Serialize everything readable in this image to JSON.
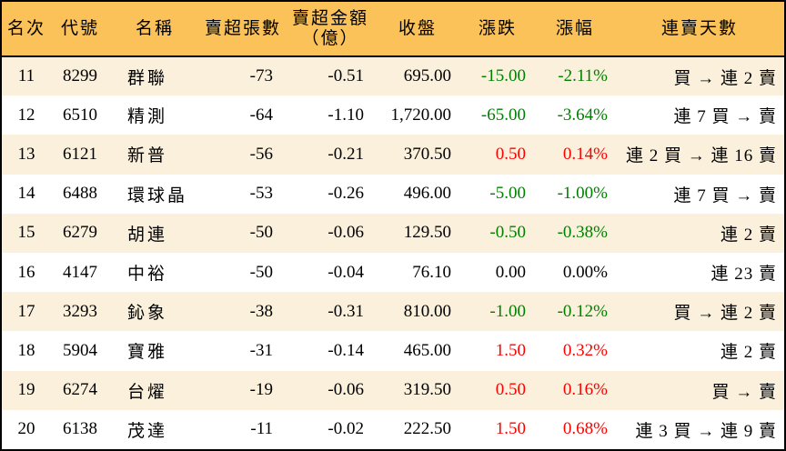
{
  "colors": {
    "header_bg": "#fac258",
    "row_alt_bg": "#faf0dc",
    "row_bg": "#ffffff",
    "up_red": "#ff0000",
    "down_green": "#008000",
    "flat_black": "#000000",
    "border": "#000000"
  },
  "table": {
    "columns": {
      "rank": "名次",
      "code": "代號",
      "name": "名稱",
      "sell_volume": "賣超張數",
      "sell_amount_line1": "賣超金額",
      "sell_amount_line2": "（億）",
      "close": "收盤",
      "change": "漲跌",
      "change_pct": "漲幅",
      "streak": "連賣天數"
    },
    "rows": [
      {
        "rank": "11",
        "code": "8299",
        "name": "群聯",
        "sell_volume": "-73",
        "sell_amount": "-0.51",
        "close": "695.00",
        "change": "-15.00",
        "change_pct": "-2.11%",
        "trend": "down",
        "streak": "買 → 連 2 賣"
      },
      {
        "rank": "12",
        "code": "6510",
        "name": "精測",
        "sell_volume": "-64",
        "sell_amount": "-1.10",
        "close": "1,720.00",
        "change": "-65.00",
        "change_pct": "-3.64%",
        "trend": "down",
        "streak": "連 7 買 → 賣"
      },
      {
        "rank": "13",
        "code": "6121",
        "name": "新普",
        "sell_volume": "-56",
        "sell_amount": "-0.21",
        "close": "370.50",
        "change": "0.50",
        "change_pct": "0.14%",
        "trend": "up",
        "streak": "連 2 買 → 連 16 賣"
      },
      {
        "rank": "14",
        "code": "6488",
        "name": "環球晶",
        "sell_volume": "-53",
        "sell_amount": "-0.26",
        "close": "496.00",
        "change": "-5.00",
        "change_pct": "-1.00%",
        "trend": "down",
        "streak": "連 7 買 → 賣"
      },
      {
        "rank": "15",
        "code": "6279",
        "name": "胡連",
        "sell_volume": "-50",
        "sell_amount": "-0.06",
        "close": "129.50",
        "change": "-0.50",
        "change_pct": "-0.38%",
        "trend": "down",
        "streak": "連 2 賣"
      },
      {
        "rank": "16",
        "code": "4147",
        "name": "中裕",
        "sell_volume": "-50",
        "sell_amount": "-0.04",
        "close": "76.10",
        "change": "0.00",
        "change_pct": "0.00%",
        "trend": "flat",
        "streak": "連 23 賣"
      },
      {
        "rank": "17",
        "code": "3293",
        "name": "鈊象",
        "sell_volume": "-38",
        "sell_amount": "-0.31",
        "close": "810.00",
        "change": "-1.00",
        "change_pct": "-0.12%",
        "trend": "down",
        "streak": "買 → 連 2 賣"
      },
      {
        "rank": "18",
        "code": "5904",
        "name": "寶雅",
        "sell_volume": "-31",
        "sell_amount": "-0.14",
        "close": "465.00",
        "change": "1.50",
        "change_pct": "0.32%",
        "trend": "up",
        "streak": "連 2 賣"
      },
      {
        "rank": "19",
        "code": "6274",
        "name": "台燿",
        "sell_volume": "-19",
        "sell_amount": "-0.06",
        "close": "319.50",
        "change": "0.50",
        "change_pct": "0.16%",
        "trend": "up",
        "streak": "買 → 賣"
      },
      {
        "rank": "20",
        "code": "6138",
        "name": "茂達",
        "sell_volume": "-11",
        "sell_amount": "-0.02",
        "close": "222.50",
        "change": "1.50",
        "change_pct": "0.68%",
        "trend": "up",
        "streak": "連 3 買 → 連 9 賣"
      }
    ]
  }
}
